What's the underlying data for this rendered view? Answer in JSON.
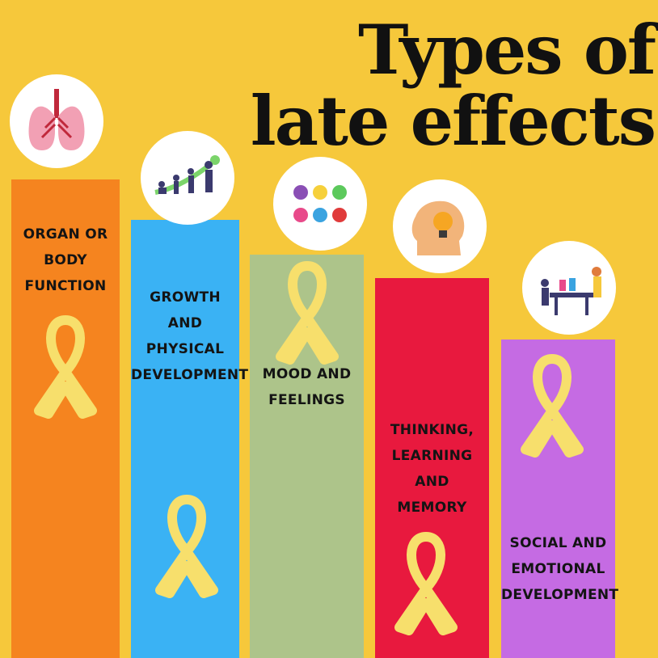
{
  "title": "Types of late effects",
  "colors": {
    "background": "#f6c83b",
    "ribbon": "#f7df6c"
  },
  "categories": [
    {
      "label": "Organ or\nbody\nfunction",
      "color": "#f5841f",
      "icon": "lungs-icon"
    },
    {
      "label": "Growth and\nphysical\ndevelopment",
      "color": "#3ab2f4",
      "icon": "growth-stages-icon"
    },
    {
      "label": "Mood and\nfeelings",
      "color": "#adc48a",
      "icon": "emotion-faces-icon"
    },
    {
      "label": "Thinking,\nlearning\nand\nmemory",
      "color": "#e8193e",
      "icon": "head-lightbulb-icon"
    },
    {
      "label": "Social and\nemotional\ndevelopment",
      "color": "#c56be3",
      "icon": "people-at-table-icon"
    }
  ]
}
